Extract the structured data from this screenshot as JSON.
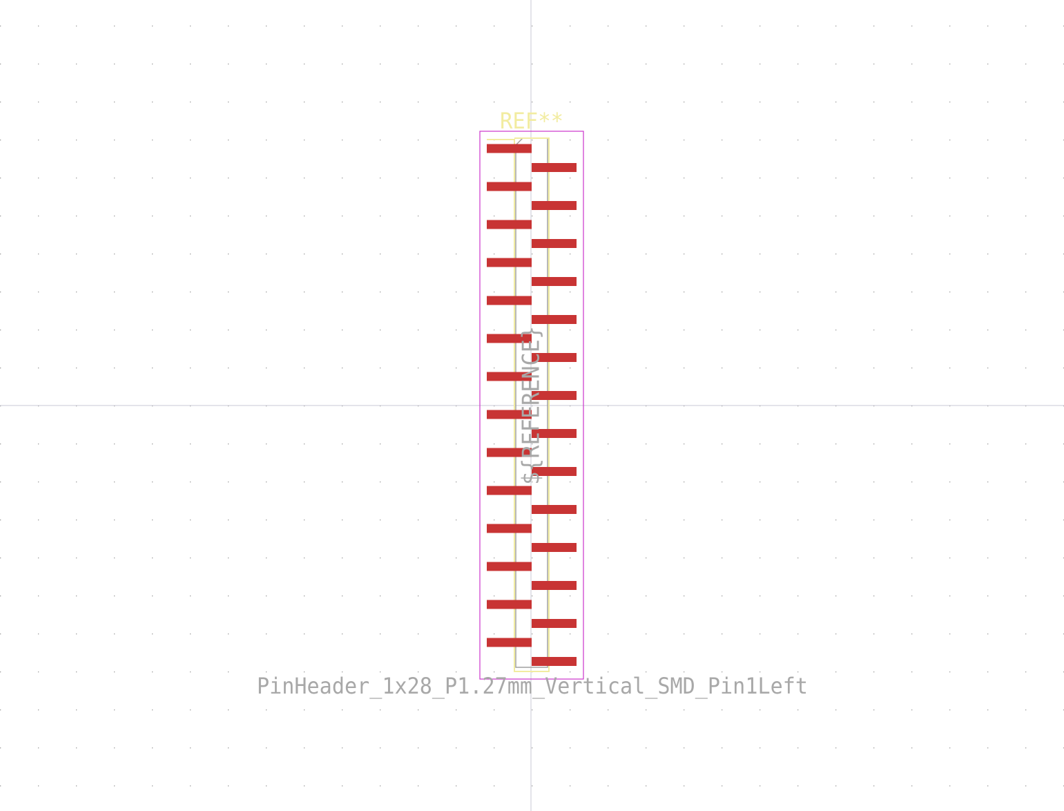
{
  "footprint": {
    "reference_text": "REF**",
    "fab_reference_text": "${REFERENCE}",
    "value_text": "PinHeader_1x28_P1.27mm_Vertical_SMD_Pin1Left",
    "pin_count": 28,
    "pitch_mm": 1.27,
    "pin1_side": "left"
  },
  "colors": {
    "background": "#ffffff",
    "grid_dot": "#9a9a9a",
    "crosshair": "#c8c8d4",
    "pad": "#c83434",
    "silkscreen": "#f2eca0",
    "courtyard": "#cc33cc",
    "fab_text": "#a8a8a8",
    "fab_line": "#a0a0a0",
    "value_text": "#a8a8a8"
  }
}
